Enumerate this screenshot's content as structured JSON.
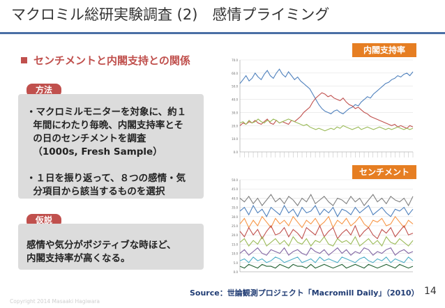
{
  "title": "マクロミル総研実験調査 (2)　感情プライミング",
  "subtitle": "センチメントと内閣支持との関係",
  "method": {
    "tag": "方法",
    "lines": [
      "・マクロミルモニターを対象に、約１",
      "  年間にわたり毎晩、内閣支持率とそ",
      "  の日のセンチメントを調査",
      "  （1000s, Fresh Sample）",
      "",
      "・１日を振り返って、８つの感情・気",
      "  分項目から該当するものを選択"
    ]
  },
  "hypothesis": {
    "tag": "仮説",
    "lines": [
      "感情や気分がポジティブな時ほど、",
      "内閣支持率が高くなる。"
    ]
  },
  "chart_labels": {
    "approval": "内閣支持率",
    "sentiment": "センチメント"
  },
  "source": "Source：世論観測プロジェクト「Macromill Daily」（2010）",
  "page_number": "14",
  "copyright": "Copyright 2014 Masaaki Hagiwara",
  "colors": {
    "accent_red": "#c0504d",
    "chart_label_orange": "#e67e22",
    "title_rule": "#4a6fa5",
    "box_gray": "#dcdcdc"
  },
  "chart_data": [
    {
      "type": "line",
      "title": "内閣支持率",
      "ylim": [
        0,
        70
      ],
      "y_ticks": [
        "70.0",
        "60.0",
        "50.0",
        "40.0",
        "30.0",
        "20.0",
        "10.0",
        "0.0"
      ],
      "series": [
        {
          "color": "#4f81bd",
          "values": [
            52,
            55,
            58,
            54,
            56,
            60,
            57,
            55,
            59,
            62,
            58,
            56,
            60,
            63,
            59,
            57,
            61,
            58,
            55,
            57,
            54,
            52,
            50,
            48,
            44,
            40,
            36,
            33,
            31,
            30,
            29,
            31,
            32,
            30,
            29,
            31,
            33,
            34,
            36,
            35,
            38,
            40,
            42,
            41,
            44,
            46,
            48,
            50,
            52,
            53,
            55,
            56,
            58,
            57,
            59,
            60,
            58,
            61
          ]
        },
        {
          "color": "#c0504d",
          "values": [
            20,
            22,
            21,
            23,
            22,
            24,
            22,
            21,
            23,
            25,
            22,
            21,
            24,
            22,
            23,
            22,
            21,
            24,
            23,
            25,
            27,
            30,
            32,
            34,
            38,
            41,
            43,
            45,
            44,
            42,
            43,
            41,
            40,
            39,
            41,
            38,
            36,
            35,
            33,
            34,
            32,
            30,
            29,
            27,
            26,
            25,
            24,
            23,
            22,
            21,
            20,
            21,
            19,
            20,
            19,
            18,
            20,
            19
          ]
        },
        {
          "color": "#9bbb59",
          "values": [
            22,
            23,
            21,
            24,
            22,
            23,
            25,
            23,
            22,
            24,
            23,
            25,
            24,
            22,
            23,
            24,
            25,
            24,
            23,
            22,
            21,
            20,
            21,
            19,
            18,
            17,
            18,
            17,
            16,
            17,
            18,
            17,
            19,
            18,
            20,
            19,
            18,
            17,
            18,
            19,
            17,
            18,
            19,
            18,
            17,
            18,
            19,
            18,
            17,
            18,
            17,
            18,
            19,
            18,
            17,
            18,
            17,
            18
          ]
        }
      ]
    },
    {
      "type": "line",
      "title": "センチメント",
      "ylim": [
        0,
        50
      ],
      "y_ticks": [
        "50.0",
        "45.0",
        "40.0",
        "35.0",
        "30.0",
        "25.0",
        "20.0",
        "15.0",
        "10.0",
        "5.0",
        "0.0"
      ],
      "series": [
        {
          "color": "#7f7f7f",
          "values": [
            40,
            38,
            41,
            37,
            40,
            36,
            39,
            42,
            38,
            40,
            37,
            41,
            39,
            36,
            40,
            38,
            42,
            37,
            39,
            41,
            38,
            36,
            40,
            39,
            37,
            41,
            38,
            40,
            36,
            39,
            42,
            38,
            40,
            37,
            41,
            39,
            38,
            40,
            36,
            41
          ]
        },
        {
          "color": "#4f81bd",
          "values": [
            33,
            35,
            31,
            36,
            32,
            34,
            30,
            35,
            33,
            31,
            36,
            32,
            34,
            30,
            35,
            32,
            33,
            36,
            31,
            34,
            32,
            35,
            30,
            34,
            33,
            31,
            35,
            32,
            34,
            36,
            31,
            33,
            35,
            32,
            30,
            34,
            33,
            35,
            31,
            34
          ]
        },
        {
          "color": "#f79646",
          "values": [
            26,
            29,
            24,
            28,
            25,
            30,
            27,
            24,
            29,
            26,
            28,
            25,
            30,
            27,
            24,
            28,
            26,
            29,
            25,
            27,
            30,
            24,
            28,
            26,
            29,
            25,
            27,
            30,
            26,
            24,
            28,
            27,
            29,
            25,
            26,
            30,
            27,
            24,
            28,
            26
          ]
        },
        {
          "color": "#c0504d",
          "values": [
            22,
            19,
            24,
            20,
            23,
            18,
            22,
            25,
            20,
            21,
            24,
            19,
            23,
            21,
            18,
            24,
            22,
            20,
            25,
            19,
            22,
            24,
            18,
            21,
            23,
            20,
            25,
            19,
            22,
            24,
            20,
            18,
            23,
            21,
            24,
            19,
            22,
            25,
            20,
            21
          ]
        },
        {
          "color": "#9bbb59",
          "values": [
            16,
            18,
            14,
            17,
            15,
            19,
            14,
            16,
            18,
            15,
            17,
            14,
            19,
            16,
            15,
            18,
            14,
            17,
            16,
            19,
            15,
            14,
            18,
            16,
            17,
            15,
            19,
            14,
            16,
            18,
            15,
            17,
            14,
            19,
            16,
            15,
            18,
            16,
            14,
            17
          ]
        },
        {
          "color": "#8064a2",
          "values": [
            10,
            12,
            9,
            11,
            13,
            10,
            9,
            12,
            11,
            10,
            13,
            9,
            11,
            12,
            10,
            9,
            13,
            11,
            10,
            12,
            9,
            11,
            13,
            10,
            12,
            9,
            11,
            10,
            13,
            12,
            9,
            11,
            10,
            12,
            13,
            9,
            11,
            12,
            10,
            11
          ]
        },
        {
          "color": "#4bacc6",
          "values": [
            6,
            7,
            5,
            8,
            6,
            7,
            5,
            6,
            8,
            7,
            5,
            6,
            7,
            8,
            5,
            6,
            7,
            5,
            8,
            6,
            7,
            6,
            5,
            8,
            7,
            6,
            5,
            7,
            8,
            6,
            5,
            7,
            6,
            8,
            5,
            7,
            6,
            5,
            8,
            6
          ]
        },
        {
          "color": "#1f5f2f",
          "values": [
            3,
            2,
            4,
            3,
            2,
            4,
            3,
            3,
            2,
            4,
            3,
            2,
            4,
            3,
            3,
            2,
            4,
            2,
            3,
            4,
            3,
            2,
            3,
            4,
            2,
            3,
            4,
            3,
            2,
            4,
            3,
            2,
            3,
            4,
            3,
            2,
            4,
            3,
            2,
            3
          ]
        }
      ]
    }
  ]
}
